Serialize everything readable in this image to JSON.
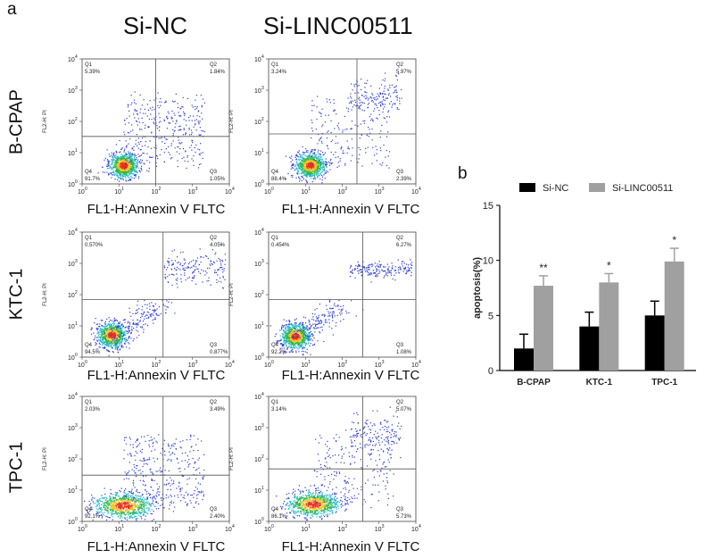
{
  "panel_a_label": "a",
  "panel_b_label": "b",
  "column_titles": [
    "Si-NC",
    "Si-LINC00511"
  ],
  "row_labels": [
    "B-CPAP",
    "KTC-1",
    "TPC-1"
  ],
  "flow_axis": {
    "ylabel": "FL2-H: PI",
    "xlabel": "FL1-H:Annexin V FLTC",
    "ticks": [
      "10",
      "10",
      "10",
      "10",
      "10"
    ],
    "tick_exponents": [
      "0",
      "1",
      "2",
      "3",
      "4"
    ]
  },
  "quadrant_labels": [
    "Q1",
    "Q2",
    "Q3",
    "Q4"
  ],
  "chart_data": [
    {
      "type": "scatter",
      "title": "",
      "panels": [
        {
          "row": "B-CPAP",
          "group": "Si-NC",
          "Q1": "5.39%",
          "Q2": "1.84%",
          "Q3": "1.05%",
          "Q4": "91.7%"
        },
        {
          "row": "B-CPAP",
          "group": "Si-LINC00511",
          "Q1": "3.24%",
          "Q2": "5.97%",
          "Q3": "2.39%",
          "Q4": "88.4%"
        },
        {
          "row": "KTC-1",
          "group": "Si-NC",
          "Q1": "0.570%",
          "Q2": "4.05%",
          "Q3": "0.877%",
          "Q4": "94.5%"
        },
        {
          "row": "KTC-1",
          "group": "Si-LINC00511",
          "Q1": "0.454%",
          "Q2": "6.27%",
          "Q3": "1.08%",
          "Q4": "92.2%"
        },
        {
          "row": "TPC-1",
          "group": "Si-NC",
          "Q1": "2.03%",
          "Q2": "3.49%",
          "Q3": "2.40%",
          "Q4": "92.1%"
        },
        {
          "row": "TPC-1",
          "group": "Si-LINC00511",
          "Q1": "3.14%",
          "Q2": "5.07%",
          "Q3": "5.73%",
          "Q4": "86.1%"
        }
      ]
    },
    {
      "type": "bar",
      "categories": [
        "B-CPAP",
        "KTC-1",
        "TPC-1"
      ],
      "series": [
        {
          "name": "Si-NC",
          "color": "#000000",
          "values": [
            2.0,
            4.0,
            5.0
          ],
          "errors": [
            1.3,
            1.3,
            1.3
          ]
        },
        {
          "name": "Si-LINC00511",
          "color": "#a0a0a0",
          "values": [
            7.7,
            8.0,
            9.9
          ],
          "errors": [
            0.9,
            0.8,
            1.2
          ]
        }
      ],
      "significance": [
        "**",
        "*",
        "*"
      ],
      "ylabel": "apoptosis(%)",
      "xlabel": "",
      "ylim": [
        0,
        15
      ],
      "yticks": [
        0,
        5,
        10,
        15
      ],
      "legend": "top"
    }
  ]
}
